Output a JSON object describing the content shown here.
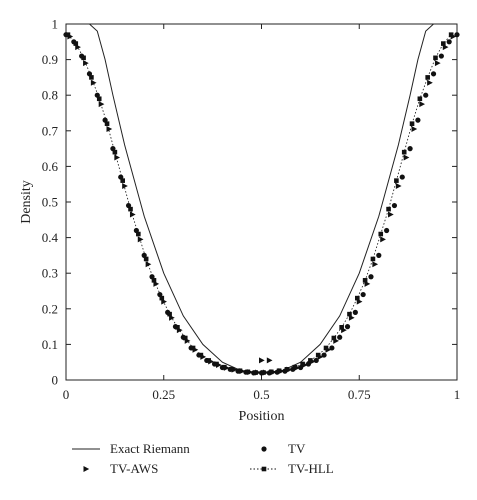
{
  "chart_data": {
    "type": "line",
    "title": "",
    "xlabel": "Position",
    "ylabel": "Density",
    "xlim": [
      0,
      1
    ],
    "ylim": [
      0,
      1
    ],
    "x_ticks": [
      {
        "value": 0,
        "label": "0"
      },
      {
        "value": 0.25,
        "label": "0.25"
      },
      {
        "value": 0.5,
        "label": "0.5"
      },
      {
        "value": 0.75,
        "label": "0.75"
      },
      {
        "value": 1,
        "label": "1"
      }
    ],
    "y_ticks": [
      {
        "value": 0,
        "label": "0"
      },
      {
        "value": 0.1,
        "label": "0.1"
      },
      {
        "value": 0.2,
        "label": "0.2"
      },
      {
        "value": 0.3,
        "label": "0.3"
      },
      {
        "value": 0.4,
        "label": "0.4"
      },
      {
        "value": 0.5,
        "label": "0.5"
      },
      {
        "value": 0.6,
        "label": "0.6"
      },
      {
        "value": 0.7,
        "label": "0.7"
      },
      {
        "value": 0.8,
        "label": "0.8"
      },
      {
        "value": 0.9,
        "label": "0.9"
      },
      {
        "value": 1,
        "label": "1"
      }
    ],
    "grid": false,
    "legend_position": "bottom",
    "series": [
      {
        "name": "Exact Riemann",
        "style": "solid-line",
        "color": "#222222",
        "x": [
          0,
          0.02,
          0.04,
          0.06,
          0.08,
          0.1,
          0.12,
          0.15,
          0.2,
          0.25,
          0.3,
          0.35,
          0.4,
          0.45,
          0.5,
          0.55,
          0.6,
          0.65,
          0.7,
          0.75,
          0.8,
          0.85,
          0.88,
          0.9,
          0.92,
          0.94,
          0.96,
          0.98,
          1
        ],
        "y": [
          1,
          1,
          1,
          1,
          0.98,
          0.9,
          0.8,
          0.66,
          0.46,
          0.3,
          0.18,
          0.1,
          0.05,
          0.025,
          0.02,
          0.025,
          0.05,
          0.1,
          0.18,
          0.3,
          0.46,
          0.66,
          0.8,
          0.9,
          0.98,
          1,
          1,
          1,
          1
        ]
      },
      {
        "name": "TV",
        "style": "circle-markers",
        "color": "#111111",
        "x": [
          0,
          0.02,
          0.04,
          0.06,
          0.08,
          0.1,
          0.12,
          0.14,
          0.16,
          0.18,
          0.2,
          0.22,
          0.24,
          0.26,
          0.28,
          0.3,
          0.32,
          0.34,
          0.36,
          0.38,
          0.4,
          0.42,
          0.44,
          0.46,
          0.48,
          0.5,
          0.52,
          0.54,
          0.56,
          0.58,
          0.6,
          0.62,
          0.64,
          0.66,
          0.68,
          0.7,
          0.72,
          0.74,
          0.76,
          0.78,
          0.8,
          0.82,
          0.84,
          0.86,
          0.88,
          0.9,
          0.92,
          0.94,
          0.96,
          0.98,
          1
        ],
        "y": [
          0.97,
          0.95,
          0.91,
          0.86,
          0.8,
          0.73,
          0.65,
          0.57,
          0.49,
          0.42,
          0.35,
          0.29,
          0.24,
          0.19,
          0.15,
          0.12,
          0.09,
          0.07,
          0.055,
          0.045,
          0.035,
          0.03,
          0.025,
          0.022,
          0.02,
          0.02,
          0.02,
          0.022,
          0.025,
          0.03,
          0.035,
          0.045,
          0.055,
          0.07,
          0.09,
          0.12,
          0.15,
          0.19,
          0.24,
          0.29,
          0.35,
          0.42,
          0.49,
          0.57,
          0.65,
          0.73,
          0.8,
          0.86,
          0.91,
          0.95,
          0.97
        ]
      },
      {
        "name": "TV-AWS",
        "style": "triangle-markers",
        "color": "#111111",
        "x": [
          0.01,
          0.03,
          0.05,
          0.07,
          0.09,
          0.11,
          0.13,
          0.15,
          0.17,
          0.19,
          0.21,
          0.23,
          0.25,
          0.27,
          0.29,
          0.31,
          0.33,
          0.35,
          0.37,
          0.39,
          0.41,
          0.43,
          0.45,
          0.47,
          0.49,
          0.51,
          0.53,
          0.55,
          0.57,
          0.59,
          0.61,
          0.63,
          0.65,
          0.67,
          0.69,
          0.71,
          0.73,
          0.75,
          0.77,
          0.79,
          0.81,
          0.83,
          0.85,
          0.87,
          0.89,
          0.91,
          0.93,
          0.95,
          0.97,
          0.99,
          0.5,
          0.52
        ],
        "y": [
          0.965,
          0.935,
          0.89,
          0.835,
          0.775,
          0.705,
          0.625,
          0.545,
          0.465,
          0.395,
          0.325,
          0.27,
          0.22,
          0.175,
          0.14,
          0.11,
          0.085,
          0.065,
          0.052,
          0.042,
          0.034,
          0.029,
          0.025,
          0.022,
          0.021,
          0.021,
          0.022,
          0.025,
          0.029,
          0.034,
          0.042,
          0.052,
          0.065,
          0.085,
          0.11,
          0.14,
          0.175,
          0.22,
          0.27,
          0.325,
          0.395,
          0.465,
          0.545,
          0.625,
          0.705,
          0.775,
          0.835,
          0.89,
          0.935,
          0.965,
          0.055,
          0.055
        ]
      },
      {
        "name": "TV-HLL",
        "style": "dotted-line-square-markers",
        "color": "#111111",
        "x": [
          0.005,
          0.025,
          0.045,
          0.065,
          0.085,
          0.105,
          0.125,
          0.145,
          0.165,
          0.185,
          0.205,
          0.225,
          0.245,
          0.265,
          0.285,
          0.305,
          0.325,
          0.345,
          0.365,
          0.385,
          0.405,
          0.425,
          0.445,
          0.465,
          0.485,
          0.505,
          0.525,
          0.545,
          0.565,
          0.585,
          0.605,
          0.625,
          0.645,
          0.665,
          0.685,
          0.705,
          0.725,
          0.745,
          0.765,
          0.785,
          0.805,
          0.825,
          0.845,
          0.865,
          0.885,
          0.905,
          0.925,
          0.945,
          0.965,
          0.985
        ],
        "y": [
          0.97,
          0.945,
          0.905,
          0.85,
          0.79,
          0.72,
          0.64,
          0.56,
          0.48,
          0.41,
          0.34,
          0.28,
          0.23,
          0.185,
          0.148,
          0.118,
          0.09,
          0.07,
          0.055,
          0.045,
          0.036,
          0.03,
          0.026,
          0.023,
          0.021,
          0.021,
          0.023,
          0.026,
          0.03,
          0.036,
          0.045,
          0.055,
          0.07,
          0.09,
          0.118,
          0.148,
          0.185,
          0.23,
          0.28,
          0.34,
          0.41,
          0.48,
          0.56,
          0.64,
          0.72,
          0.79,
          0.85,
          0.905,
          0.945,
          0.97
        ]
      }
    ]
  }
}
